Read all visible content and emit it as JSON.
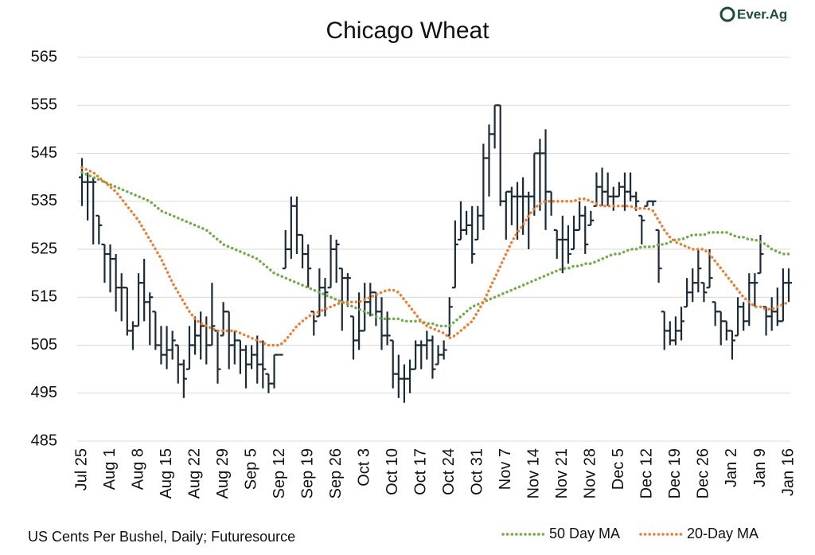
{
  "chart_data": {
    "type": "ohlc",
    "title": "Chicago Wheat",
    "source": "US Cents Per Bushel, Daily; Futuresource",
    "logo": "Ever.Ag",
    "categories": [
      "Jul 25",
      null,
      null,
      null,
      null,
      "Aug 1",
      null,
      null,
      null,
      null,
      "Aug 8",
      null,
      null,
      null,
      null,
      "Aug 15",
      null,
      null,
      null,
      null,
      "Aug 22",
      null,
      null,
      null,
      null,
      "Aug 29",
      null,
      null,
      null,
      null,
      "Sep 5",
      null,
      null,
      null,
      null,
      "Sep 12",
      null,
      null,
      null,
      null,
      "Sep 19",
      null,
      null,
      null,
      null,
      "Sep 26",
      null,
      null,
      null,
      null,
      "Oct 3",
      null,
      null,
      null,
      null,
      "Oct 10",
      null,
      null,
      null,
      null,
      "Oct 17",
      null,
      null,
      null,
      null,
      "Oct 24",
      null,
      null,
      null,
      null,
      "Oct 31",
      null,
      null,
      null,
      null,
      "Nov 7",
      null,
      null,
      null,
      null,
      "Nov 14",
      null,
      null,
      null,
      null,
      "Nov 21",
      null,
      null,
      null,
      null,
      "Nov 28",
      null,
      null,
      null,
      null,
      "Dec 5",
      null,
      null,
      null,
      null,
      "Dec 12",
      null,
      null,
      null,
      null,
      "Dec 19",
      null,
      null,
      null,
      null,
      "Dec 26",
      null,
      null,
      null,
      null,
      "Jan 2",
      null,
      null,
      null,
      null,
      "Jan 9",
      null,
      null,
      null,
      null,
      "Jan 16"
    ],
    "open": [
      540,
      539,
      539,
      532,
      526,
      524,
      523,
      517,
      517,
      508,
      509,
      518,
      514,
      512,
      505,
      503,
      504,
      505,
      501,
      500,
      505,
      507,
      509,
      505,
      508,
      507,
      512,
      505,
      506,
      504,
      501,
      503,
      501,
      499,
      497,
      503,
      521,
      525,
      534,
      528,
      524,
      512,
      511,
      517,
      517,
      525,
      521,
      519,
      511,
      506,
      508,
      514,
      516,
      512,
      507,
      506,
      499,
      498,
      498,
      500,
      505,
      505,
      506,
      501,
      503,
      507,
      517,
      527,
      529,
      530,
      527,
      532,
      544,
      549,
      555,
      535,
      537,
      536,
      536,
      536,
      536,
      545,
      545,
      537,
      529,
      527,
      527,
      525,
      529,
      532,
      530,
      534,
      538,
      537,
      536,
      536,
      538,
      537,
      536,
      532,
      534,
      535,
      529,
      512,
      508,
      506,
      508,
      513,
      516,
      518,
      518,
      517,
      514,
      512,
      510,
      508,
      507,
      513,
      510,
      518,
      520,
      513,
      511,
      512,
      510,
      518
    ],
    "high": [
      544,
      541,
      540,
      532,
      526,
      526,
      524,
      520,
      517,
      510,
      520,
      523,
      516,
      512,
      509,
      509,
      508,
      505,
      502,
      509,
      511,
      512,
      511,
      518,
      508,
      514,
      512,
      508,
      506,
      505,
      505,
      507,
      506,
      499,
      503,
      503,
      529,
      536,
      536,
      528,
      526,
      512,
      521,
      519,
      528,
      527,
      521,
      520,
      511,
      516,
      518,
      518,
      516,
      515,
      512,
      506,
      503,
      501,
      502,
      506,
      506,
      508,
      507,
      505,
      506,
      515,
      531,
      535,
      533,
      534,
      534,
      547,
      551,
      555,
      555,
      537,
      538,
      539,
      540,
      537,
      545,
      548,
      550,
      537,
      529,
      532,
      530,
      532,
      535,
      534,
      533,
      541,
      542,
      541,
      538,
      539,
      541,
      541,
      537,
      532,
      535,
      535,
      529,
      512,
      510,
      511,
      513,
      519,
      521,
      525,
      518,
      525,
      514,
      512,
      510,
      508,
      515,
      514,
      520,
      520,
      528,
      513,
      515,
      517,
      521,
      521
    ],
    "low": [
      534,
      531,
      526,
      526,
      518,
      516,
      512,
      510,
      507,
      504,
      509,
      510,
      505,
      504,
      501,
      500,
      502,
      497,
      494,
      500,
      503,
      502,
      501,
      505,
      497,
      507,
      500,
      501,
      499,
      496,
      500,
      497,
      496,
      495,
      496,
      503,
      521,
      523,
      524,
      521,
      517,
      507,
      511,
      511,
      517,
      518,
      508,
      513,
      502,
      504,
      508,
      511,
      509,
      504,
      505,
      496,
      494,
      493,
      495,
      500,
      500,
      502,
      498,
      501,
      502,
      507,
      517,
      527,
      528,
      522,
      527,
      529,
      536,
      546,
      534,
      527,
      530,
      527,
      528,
      525,
      532,
      533,
      529,
      532,
      523,
      520,
      522,
      525,
      529,
      524,
      530,
      534,
      534,
      534,
      533,
      536,
      533,
      535,
      533,
      526,
      534,
      534,
      518,
      504,
      505,
      505,
      506,
      513,
      514,
      516,
      514,
      517,
      509,
      505,
      506,
      502,
      507,
      508,
      509,
      513,
      520,
      507,
      508,
      509,
      510,
      514
    ],
    "close": [
      539,
      539,
      539,
      530,
      524,
      523,
      517,
      517,
      508,
      509,
      518,
      514,
      515,
      505,
      503,
      504,
      506,
      501,
      498,
      505,
      507,
      509,
      505,
      509,
      500,
      512,
      505,
      506,
      504,
      501,
      503,
      501,
      500,
      497,
      503,
      503,
      525,
      534,
      528,
      524,
      521,
      510,
      517,
      516,
      525,
      526,
      519,
      519,
      506,
      508,
      514,
      516,
      512,
      507,
      507,
      499,
      498,
      498,
      500,
      505,
      505,
      506,
      500,
      503,
      504,
      513,
      526,
      529,
      530,
      524,
      532,
      544,
      549,
      555,
      535,
      537,
      536,
      536,
      536,
      536,
      545,
      545,
      537,
      535,
      527,
      527,
      524,
      529,
      532,
      526,
      531,
      538,
      537,
      536,
      536,
      538,
      537,
      536,
      535,
      531,
      535,
      535,
      521,
      508,
      506,
      508,
      510,
      516,
      518,
      521,
      516,
      519,
      512,
      510,
      508,
      506,
      513,
      510,
      518,
      518,
      524,
      511,
      512,
      510,
      518,
      518
    ],
    "bar_color": "#1c2b38",
    "series": [
      {
        "name": "50 Day MA",
        "color": "#70ad47",
        "values": [
          541,
          540.5,
          540,
          539.5,
          539,
          538.5,
          538,
          537.5,
          537,
          536.5,
          536,
          535.5,
          535,
          534,
          533,
          532.5,
          532,
          531.5,
          531,
          530.5,
          530,
          529.5,
          529,
          528,
          527,
          526,
          525.5,
          525,
          524.5,
          524,
          523.5,
          523,
          522,
          521,
          520,
          519.5,
          519,
          518.5,
          518,
          517.5,
          517,
          516.5,
          516,
          515.5,
          515,
          514.5,
          514,
          513.5,
          513,
          512.5,
          512,
          511.5,
          511,
          510.5,
          510.5,
          510.5,
          510.5,
          510,
          510,
          510,
          510,
          509.5,
          509.5,
          509,
          509,
          509,
          510,
          511,
          512,
          513,
          513.5,
          514,
          514.5,
          515,
          515.5,
          516,
          516.5,
          517,
          517.5,
          518,
          518.5,
          519,
          519.5,
          520,
          520.5,
          521,
          521,
          521.5,
          521.5,
          522,
          522,
          522.5,
          523,
          523.5,
          524,
          524,
          524.5,
          525,
          525,
          525.5,
          525.5,
          525.5,
          526,
          526,
          526.5,
          527,
          527,
          527.5,
          528,
          528,
          528,
          528.5,
          528.5,
          528.5,
          528.5,
          528,
          527.5,
          527.5,
          527,
          527,
          526.5,
          526,
          525,
          524.5,
          524,
          524
        ]
      },
      {
        "name": "20-Day MA",
        "color": "#ed7d31",
        "values": [
          542,
          541.5,
          541,
          540,
          539,
          538,
          537,
          535.5,
          534,
          532.5,
          531,
          529,
          527,
          525,
          523,
          520.5,
          518,
          516,
          514,
          512,
          510.5,
          509.5,
          509,
          508.5,
          508,
          508,
          508,
          508,
          507.5,
          507,
          506.5,
          506,
          505.5,
          505,
          505,
          505,
          506,
          507.5,
          509,
          510,
          511,
          511.5,
          512,
          512.5,
          513,
          513.5,
          514,
          514,
          514,
          514,
          514.5,
          515,
          515.5,
          516,
          516.5,
          516.5,
          516,
          514.5,
          513,
          511.5,
          510,
          509,
          508.5,
          508,
          507.5,
          506.5,
          507,
          508,
          509,
          510,
          512,
          514,
          516.5,
          519,
          521.5,
          524,
          526.5,
          528.5,
          530,
          532,
          533.5,
          534.5,
          535,
          535,
          535,
          535,
          535,
          535,
          535.5,
          535.5,
          535,
          534.5,
          534,
          534,
          534,
          534,
          534,
          534,
          533.5,
          533.5,
          533.5,
          533,
          531,
          529,
          527.5,
          526.5,
          526,
          525.5,
          525,
          525,
          525,
          524,
          522.5,
          521,
          519.5,
          518,
          516.5,
          515,
          514,
          513,
          513,
          512.5,
          512.5,
          513,
          513.5,
          514
        ]
      }
    ],
    "ylim": [
      485,
      565
    ],
    "yticks": [
      485,
      495,
      505,
      515,
      525,
      535,
      545,
      555,
      565
    ],
    "grid": true,
    "legend": "bottom-right"
  }
}
